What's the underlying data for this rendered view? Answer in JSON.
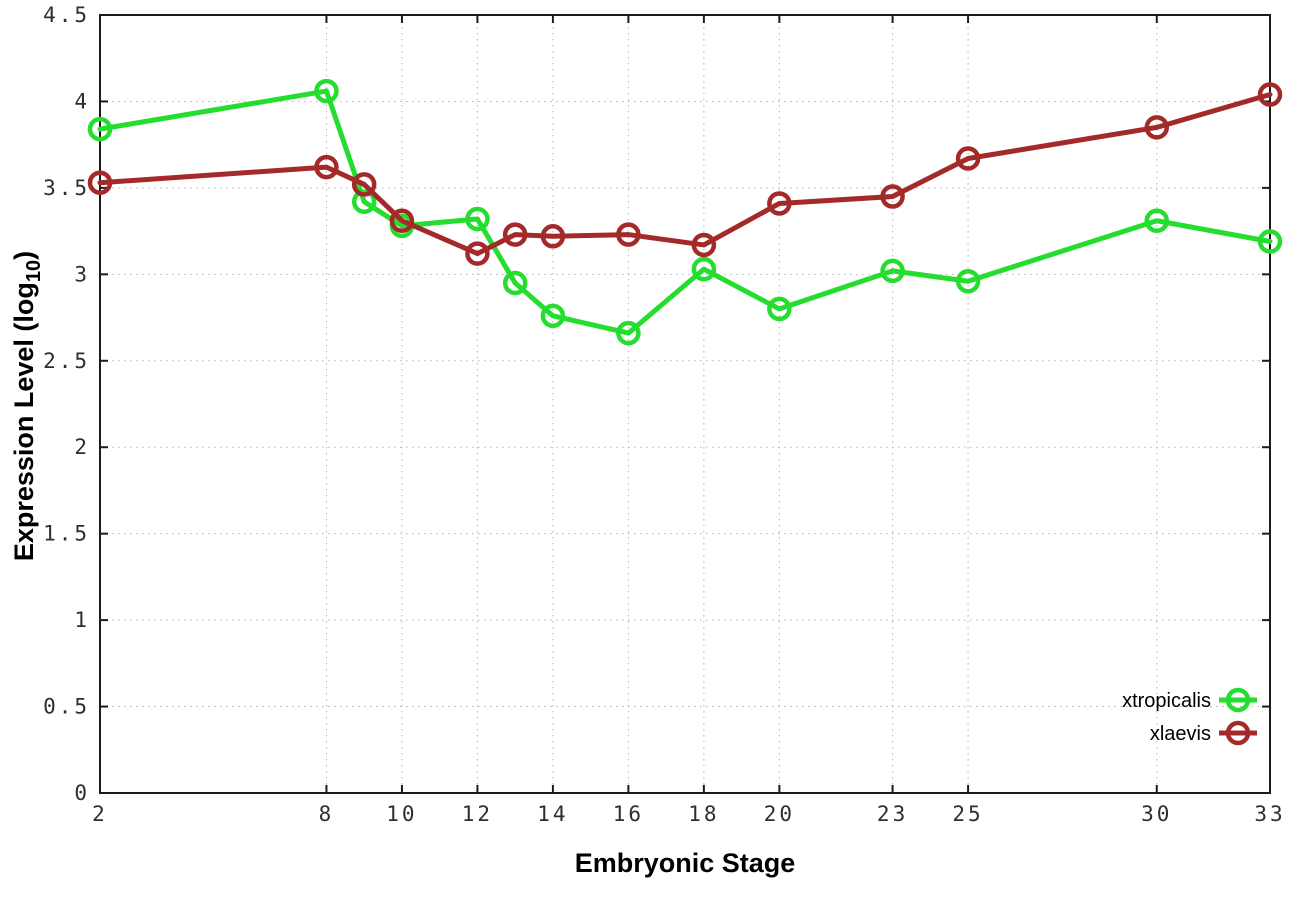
{
  "chart_data": {
    "type": "line",
    "title": "",
    "xlabel": "Embryonic Stage",
    "ylabel_prefix": "Expression Level (log",
    "ylabel_subscript": "10",
    "ylabel_suffix": ")",
    "x": [
      2,
      8,
      9,
      10,
      12,
      13,
      14,
      16,
      18,
      20,
      23,
      25,
      30,
      33
    ],
    "series": [
      {
        "name": "xtropicalis",
        "color": "#24dd2e",
        "values": [
          3.84,
          4.06,
          3.42,
          3.28,
          3.32,
          2.95,
          2.76,
          2.66,
          3.03,
          2.8,
          3.02,
          2.96,
          3.31,
          3.19
        ]
      },
      {
        "name": "xlaevis",
        "color": "#a42a2a",
        "values": [
          3.53,
          3.62,
          3.52,
          3.31,
          3.12,
          3.23,
          3.22,
          3.23,
          3.17,
          3.41,
          3.45,
          3.67,
          3.85,
          4.04
        ]
      }
    ],
    "xticks": [
      2,
      8,
      10,
      12,
      14,
      16,
      18,
      20,
      23,
      25,
      30,
      33
    ],
    "yticks": [
      0,
      0.5,
      1,
      1.5,
      2,
      2.5,
      3,
      3.5,
      4,
      4.5
    ],
    "xlim": [
      2,
      33
    ],
    "ylim": [
      0,
      4.5
    ],
    "grid": true,
    "legend_position": "bottom-right-inside",
    "background_color": "#ffffff",
    "axis_color": "#1c1c1c",
    "grid_color": "#b3b3b3",
    "tick_label_color": "#2e2e2e"
  }
}
